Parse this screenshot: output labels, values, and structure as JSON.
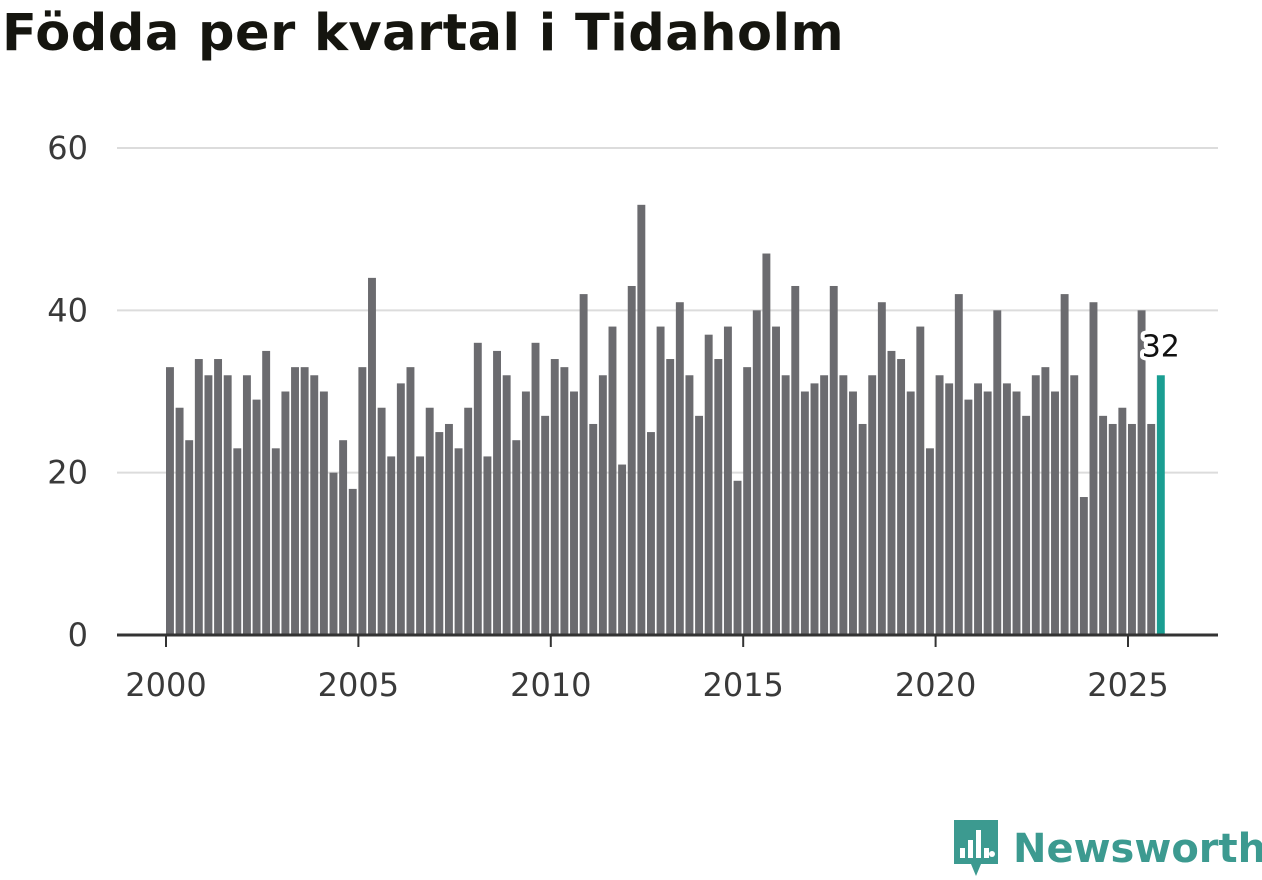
{
  "chart_data": {
    "type": "bar",
    "title": "Födda per kvartal i Tidaholm",
    "xlabel": "",
    "ylabel": "",
    "ylim": [
      0,
      60
    ],
    "y_ticks": [
      "0",
      "20",
      "40",
      "60"
    ],
    "x_ticks": [
      "2000",
      "2005",
      "2010",
      "2015",
      "2020",
      "2025"
    ],
    "x_start_year": 2000,
    "periods_per_year": 4,
    "grid": true,
    "legend": "none",
    "highlight_last_label": "32",
    "colors": {
      "bar": "#6b6b6f",
      "highlight": "#1a9e92",
      "grid": "#dcdcdc",
      "axis": "#333333"
    },
    "values": [
      33,
      28,
      24,
      34,
      32,
      34,
      32,
      23,
      32,
      29,
      35,
      23,
      30,
      33,
      33,
      32,
      30,
      20,
      24,
      18,
      33,
      44,
      28,
      22,
      31,
      33,
      22,
      28,
      25,
      26,
      23,
      28,
      36,
      22,
      35,
      32,
      24,
      30,
      36,
      27,
      34,
      33,
      30,
      42,
      26,
      32,
      38,
      21,
      43,
      53,
      25,
      38,
      34,
      41,
      32,
      27,
      37,
      34,
      38,
      19,
      33,
      40,
      47,
      38,
      32,
      43,
      30,
      31,
      32,
      43,
      32,
      30,
      26,
      32,
      41,
      35,
      34,
      30,
      38,
      23,
      32,
      31,
      42,
      29,
      31,
      30,
      40,
      31,
      30,
      27,
      32,
      33,
      30,
      42,
      32,
      17,
      41,
      27,
      26,
      28,
      26,
      40,
      26,
      32
    ]
  },
  "brand": {
    "name": "Newsworthy",
    "color": "#3c9a90",
    "icon": "newsworthy-logo-icon"
  }
}
